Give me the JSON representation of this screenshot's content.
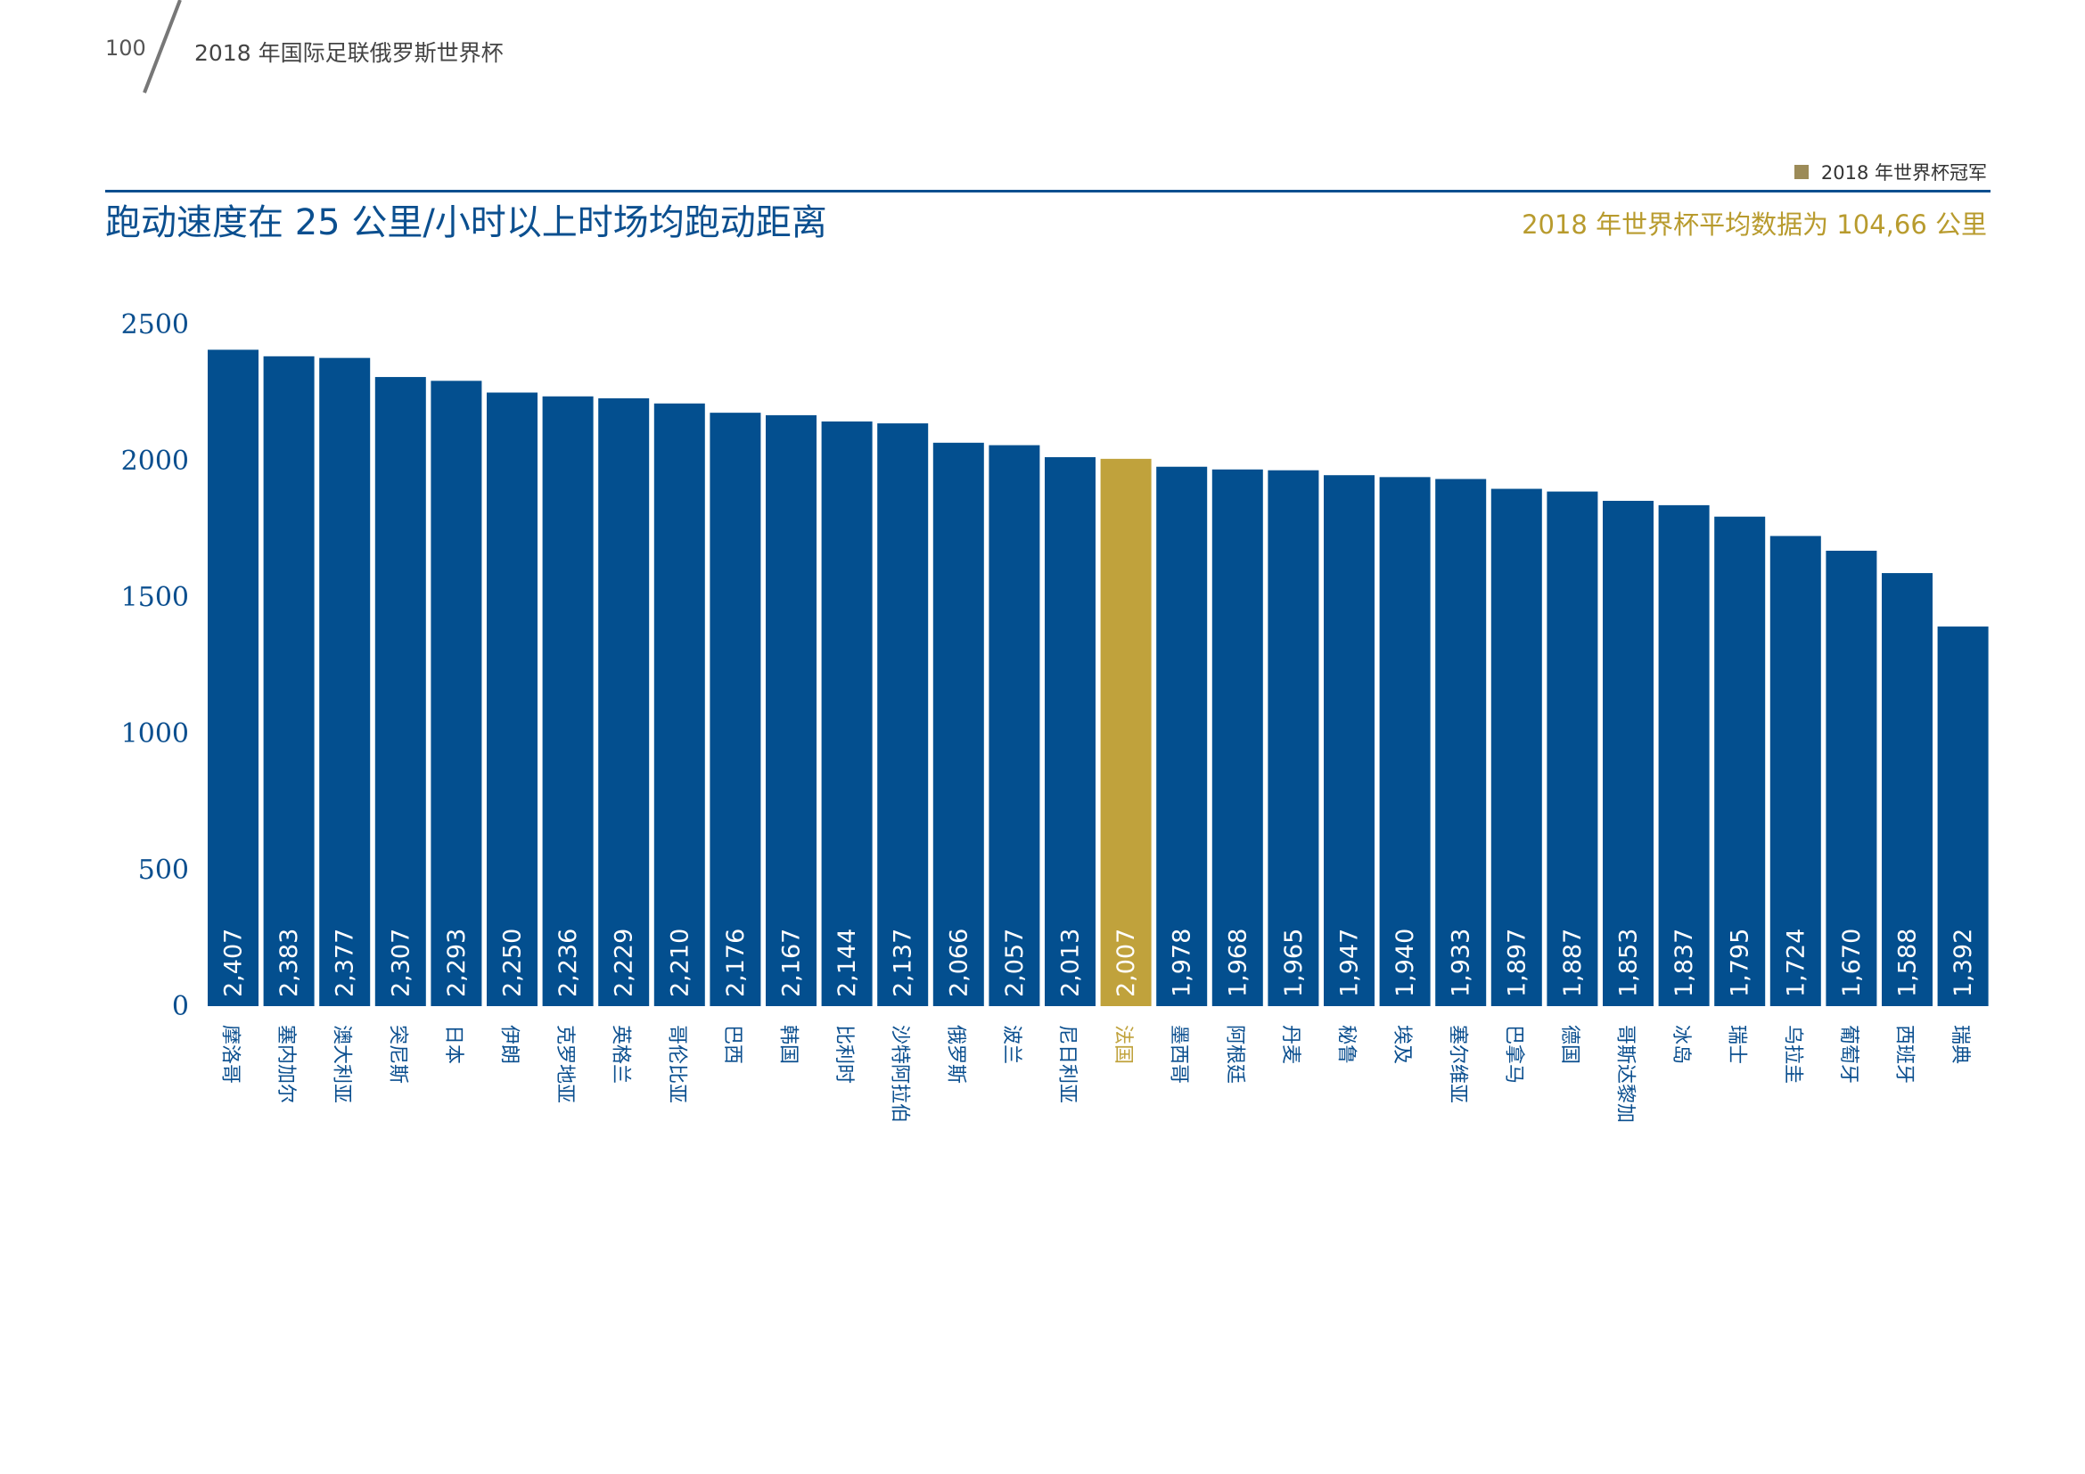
{
  "header": {
    "page_number": "100",
    "title": "2018 年国际足联俄罗斯世界杯"
  },
  "legend": {
    "label": "2018 年世界杯冠军",
    "color": "#9c8b58"
  },
  "avg_note": "2018 年世界杯平均数据为 104,66 公里",
  "colors": {
    "bar": "#034f8f",
    "highlight": "#c0a23c",
    "axis_text": "#0b4f8f",
    "rule": "#0b4f8f"
  },
  "chart_data": {
    "type": "bar",
    "title": "跑动速度在 25 公里/小时以上时场均跑动距离",
    "xlabel": "",
    "ylabel": "",
    "ylim": [
      0,
      2500
    ],
    "yticks": [
      "0",
      "500",
      "1000",
      "1500",
      "2000",
      "2500"
    ],
    "grid": false,
    "highlight_category": "法国",
    "categories": [
      "摩洛哥",
      "塞内加尔",
      "澳大利亚",
      "突尼斯",
      "日本",
      "伊朗",
      "克罗地亚",
      "英格兰",
      "哥伦比亚",
      "巴西",
      "韩国",
      "比利时",
      "沙特阿拉伯",
      "俄罗斯",
      "波兰",
      "尼日利亚",
      "法国",
      "墨西哥",
      "阿根廷",
      "丹麦",
      "秘鲁",
      "埃及",
      "塞尔维亚",
      "巴拿马",
      "德国",
      "哥斯达黎加",
      "冰岛",
      "瑞士",
      "乌拉圭",
      "葡萄牙",
      "西班牙",
      "瑞典"
    ],
    "values": [
      2407,
      2383,
      2377,
      2307,
      2293,
      2250,
      2236,
      2229,
      2210,
      2176,
      2167,
      2144,
      2137,
      2066,
      2057,
      2013,
      2007,
      1978,
      1968,
      1965,
      1947,
      1940,
      1933,
      1897,
      1887,
      1853,
      1837,
      1795,
      1724,
      1670,
      1588,
      1392
    ],
    "value_labels": [
      "2,407",
      "2,383",
      "2,377",
      "2,307",
      "2,293",
      "2,250",
      "2,236",
      "2,229",
      "2,210",
      "2,176",
      "2,167",
      "2,144",
      "2,137",
      "2,066",
      "2,057",
      "2,013",
      "2,007",
      "1,978",
      "1,968",
      "1,965",
      "1,947",
      "1,940",
      "1,933",
      "1,897",
      "1,887",
      "1,853",
      "1,837",
      "1,795",
      "1,724",
      "1,670",
      "1,588",
      "1,392"
    ]
  }
}
